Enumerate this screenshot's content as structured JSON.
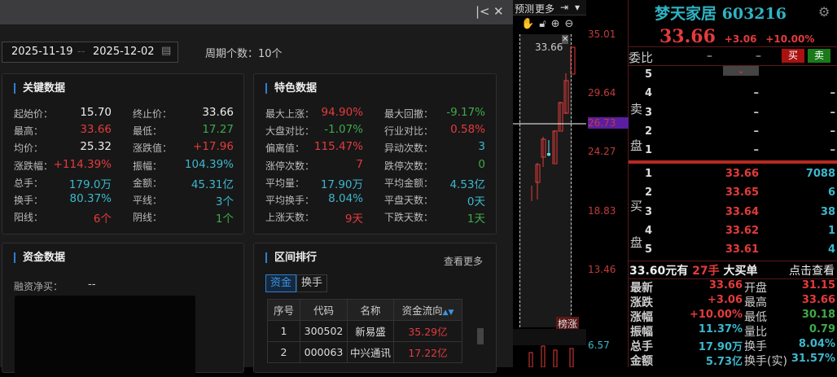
{
  "window": {
    "title": "",
    "collapse_icon": "collapse-left-icon",
    "close_icon": "close-icon"
  },
  "range": {
    "start": "2025-11-19",
    "sep": "--",
    "end": "2025-12-02",
    "period_label": "周期个数：10个"
  },
  "key_data": {
    "title": "关键数据",
    "rows": [
      [
        {
          "label": "起始价：",
          "value": "15.70",
          "color": "white"
        },
        {
          "label": "终止价：",
          "value": "33.66",
          "color": "white"
        }
      ],
      [
        {
          "label": "最高：",
          "value": "33.66",
          "color": "red"
        },
        {
          "label": "最低：",
          "value": "17.27",
          "color": "green"
        }
      ],
      [
        {
          "label": "均价：",
          "value": "25.32",
          "color": "white"
        },
        {
          "label": "涨跌值：",
          "value": "+17.96",
          "color": "red"
        }
      ],
      [
        {
          "label": "涨跌幅：",
          "value": "+114.39%",
          "color": "red"
        },
        {
          "label": "振幅：",
          "value": "104.39%",
          "color": "cyan"
        }
      ],
      [
        {
          "label": "总手：",
          "value": "179.0万",
          "color": "cyan"
        },
        {
          "label": "金额：",
          "value": "45.31亿",
          "color": "cyan"
        }
      ],
      [
        {
          "label": "换手：",
          "value": "80.37%",
          "color": "cyan"
        },
        {
          "label": "平线：",
          "value": "3个",
          "color": "cyan"
        }
      ],
      [
        {
          "label": "阳线：",
          "value": "6个",
          "color": "red"
        },
        {
          "label": "阴线：",
          "value": "1个",
          "color": "green"
        }
      ]
    ]
  },
  "feature_data": {
    "title": "特色数据",
    "rows": [
      [
        {
          "label": "最大上涨：",
          "value": "94.90%",
          "color": "red"
        },
        {
          "label": "最大回撤：",
          "value": "-9.17%",
          "color": "green"
        }
      ],
      [
        {
          "label": "大盘对比：",
          "value": "-1.07%",
          "color": "green"
        },
        {
          "label": "行业对比：",
          "value": "0.58%",
          "color": "red"
        }
      ],
      [
        {
          "label": "偏离值：",
          "value": "115.47%",
          "color": "red"
        },
        {
          "label": "异动次数：",
          "value": "3",
          "color": "cyan"
        }
      ],
      [
        {
          "label": "涨停次数：",
          "value": "7",
          "color": "red"
        },
        {
          "label": "跌停次数：",
          "value": "0",
          "color": "green"
        }
      ],
      [
        {
          "label": "平均量：",
          "value": "17.90万",
          "color": "cyan"
        },
        {
          "label": "平均金额：",
          "value": "4.53亿",
          "color": "cyan"
        }
      ],
      [
        {
          "label": "平均换手：",
          "value": "8.04%",
          "color": "cyan"
        },
        {
          "label": "平盘天数：",
          "value": "0天",
          "color": "cyan"
        }
      ],
      [
        {
          "label": "上涨天数：",
          "value": "9天",
          "color": "red"
        },
        {
          "label": "下跌天数：",
          "value": "1天",
          "color": "green"
        }
      ]
    ]
  },
  "fund_data": {
    "title": "资金数据",
    "margin_label": "融资净买：",
    "margin_value": "--"
  },
  "ranking": {
    "title": "区间排行",
    "more": "查看更多",
    "tabs": [
      "资金",
      "换手"
    ],
    "active_tab": 0,
    "columns": [
      "序号",
      "代码",
      "名称",
      "资金流向"
    ],
    "rows": [
      [
        "1",
        "300502",
        "新易盛",
        "35.29亿"
      ],
      [
        "2",
        "000063",
        "中兴通讯",
        "17.22亿"
      ]
    ]
  },
  "chart": {
    "toolbar": [
      "预测",
      "更多"
    ],
    "last_price_label": "33.66",
    "axis": [
      "35.01",
      "29.64",
      "26.73",
      "24.27",
      "18.83",
      "13.46",
      "6.57"
    ],
    "crosshair_value": "26.73",
    "bottom_tag": "榜涨"
  },
  "quote": {
    "name": "梦天家居",
    "code": "603216",
    "price": "33.66",
    "change": "+3.06",
    "pct": "+10.00%",
    "weibi_label": "委比",
    "weibi_values": [
      "–",
      "–"
    ],
    "buy_btn": "买",
    "sell_btn": "卖",
    "sell_label": [
      "卖",
      "盘"
    ],
    "buy_label": [
      "买",
      "盘"
    ],
    "asks": [
      [
        "5",
        "",
        ""
      ],
      [
        "4",
        "–",
        "–"
      ],
      [
        "3",
        "–",
        "–"
      ],
      [
        "2",
        "–",
        "–"
      ],
      [
        "1",
        "–",
        "–"
      ]
    ],
    "bids": [
      [
        "1",
        "33.66",
        "7088"
      ],
      [
        "2",
        "33.65",
        "6"
      ],
      [
        "3",
        "33.64",
        "38"
      ],
      [
        "4",
        "33.62",
        "1"
      ],
      [
        "5",
        "33.61",
        "4"
      ]
    ],
    "big_order": {
      "price": "33.60元有",
      "qty": "27手",
      "text": "大买单",
      "link": "点击查看"
    },
    "stats": [
      [
        "最新",
        "33.66",
        "开盘",
        "31.15"
      ],
      [
        "涨跌",
        "+3.06",
        "最高",
        "33.66"
      ],
      [
        "涨幅",
        "+10.00%",
        "最低",
        "30.18"
      ],
      [
        "振幅",
        "11.37%",
        "量比",
        "0.79"
      ],
      [
        "总手",
        "17.90万",
        "换手",
        "8.04%"
      ],
      [
        "金额",
        "5.73亿",
        "换手(实)",
        "31.57%"
      ]
    ],
    "colors": {
      "up": "#e43b3b",
      "down": "#3faa48",
      "neutral": "#3cb8cc",
      "title": "#2fb4c4"
    }
  }
}
